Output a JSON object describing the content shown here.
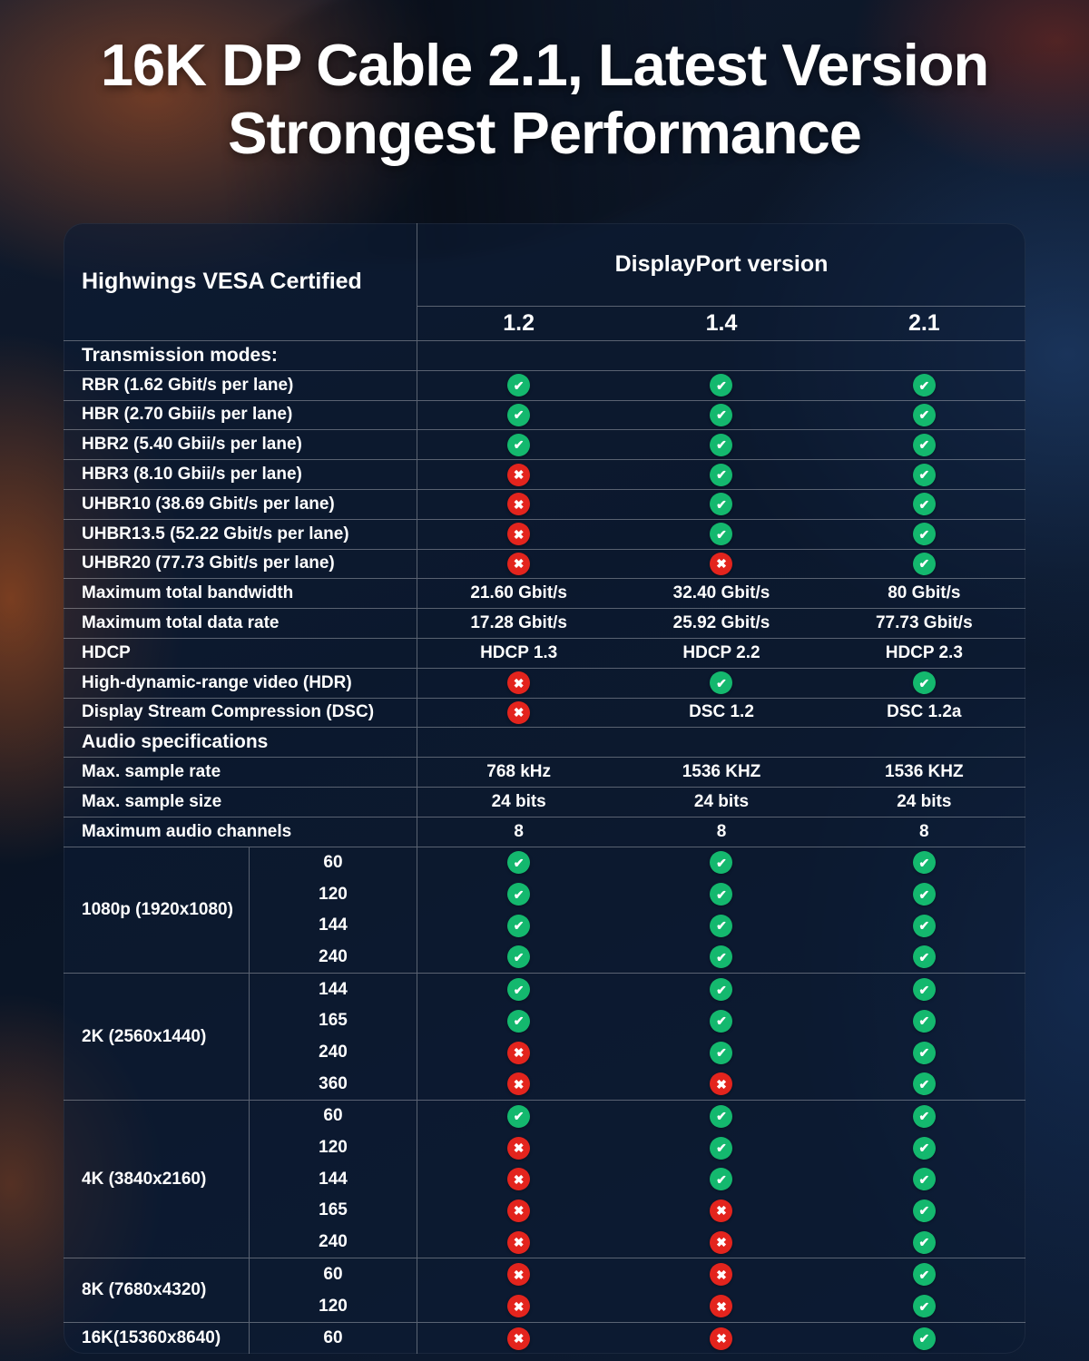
{
  "title": {
    "line1": "16K DP Cable 2.1, Latest Version",
    "line2": "Strongest Performance"
  },
  "icons": {
    "check": "✔",
    "cross": "✖"
  },
  "colors": {
    "check": "#14b86e",
    "cross": "#e3241d"
  },
  "chart_data": {
    "type": "table",
    "title": "16K DP Cable 2.1, Latest Version Strongest Performance",
    "left_header": "Highwings VESA Certified",
    "group_header": "DisplayPort version",
    "columns": [
      "1.2",
      "1.4",
      "2.1"
    ],
    "spec_rows": [
      {
        "type": "section",
        "label": "Transmission modes:"
      },
      {
        "label": "RBR (1.62 Gbit/s per lane)",
        "values": [
          "check",
          "check",
          "check"
        ]
      },
      {
        "label": "HBR (2.70 Gbii/s per lane)",
        "values": [
          "check",
          "check",
          "check"
        ]
      },
      {
        "label": "HBR2 (5.40 Gbii/s per lane)",
        "values": [
          "check",
          "check",
          "check"
        ]
      },
      {
        "label": "HBR3 (8.10 Gbii/s per lane)",
        "values": [
          "cross",
          "check",
          "check"
        ]
      },
      {
        "label": "UHBR10 (38.69 Gbit/s per lane)",
        "values": [
          "cross",
          "check",
          "check"
        ]
      },
      {
        "label": "UHBR13.5 (52.22 Gbit/s per lane)",
        "values": [
          "cross",
          "check",
          "check"
        ]
      },
      {
        "label": "UHBR20 (77.73 Gbit/s per lane)",
        "values": [
          "cross",
          "cross",
          "check"
        ]
      },
      {
        "label": "Maximum total bandwidth",
        "values": [
          "21.60 Gbit/s",
          "32.40 Gbit/s",
          "80 Gbit/s"
        ]
      },
      {
        "label": "Maximum total data rate",
        "values": [
          "17.28 Gbit/s",
          "25.92 Gbit/s",
          "77.73 Gbit/s"
        ]
      },
      {
        "label": "HDCP",
        "values": [
          "HDCP 1.3",
          "HDCP 2.2",
          "HDCP 2.3"
        ]
      },
      {
        "label": "High-dynamic-range video (HDR)",
        "values": [
          "cross",
          "check",
          "check"
        ]
      },
      {
        "label": "Display Stream Compression (DSC)",
        "values": [
          "cross",
          "DSC 1.2",
          "DSC 1.2a"
        ]
      },
      {
        "type": "section",
        "label": "Audio specifications"
      },
      {
        "label": "Max. sample rate",
        "values": [
          "768 kHz",
          "1536 KHZ",
          "1536 KHZ"
        ]
      },
      {
        "label": "Max. sample size",
        "values": [
          "24 bits",
          "24 bits",
          "24 bits"
        ]
      },
      {
        "label": "Maximum audio channels",
        "values": [
          "8",
          "8",
          "8"
        ]
      }
    ],
    "resolution_groups": [
      {
        "label": "1080p (1920x1080)",
        "rows": [
          {
            "rate": "60",
            "values": [
              "check",
              "check",
              "check"
            ]
          },
          {
            "rate": "120",
            "values": [
              "check",
              "check",
              "check"
            ]
          },
          {
            "rate": "144",
            "values": [
              "check",
              "check",
              "check"
            ]
          },
          {
            "rate": "240",
            "values": [
              "check",
              "check",
              "check"
            ]
          }
        ]
      },
      {
        "label": "2K (2560x1440)",
        "rows": [
          {
            "rate": "144",
            "values": [
              "check",
              "check",
              "check"
            ]
          },
          {
            "rate": "165",
            "values": [
              "check",
              "check",
              "check"
            ]
          },
          {
            "rate": "240",
            "values": [
              "cross",
              "check",
              "check"
            ]
          },
          {
            "rate": "360",
            "values": [
              "cross",
              "cross",
              "check"
            ]
          }
        ]
      },
      {
        "label": "4K (3840x2160)",
        "rows": [
          {
            "rate": "60",
            "values": [
              "check",
              "check",
              "check"
            ]
          },
          {
            "rate": "120",
            "values": [
              "cross",
              "check",
              "check"
            ]
          },
          {
            "rate": "144",
            "values": [
              "cross",
              "check",
              "check"
            ]
          },
          {
            "rate": "165",
            "values": [
              "cross",
              "cross",
              "check"
            ]
          },
          {
            "rate": "240",
            "values": [
              "cross",
              "cross",
              "check"
            ]
          }
        ]
      },
      {
        "label": "8K (7680x4320)",
        "rows": [
          {
            "rate": "60",
            "values": [
              "cross",
              "cross",
              "check"
            ]
          },
          {
            "rate": "120",
            "values": [
              "cross",
              "cross",
              "check"
            ]
          }
        ]
      },
      {
        "label": "16K(15360x8640)",
        "rows": [
          {
            "rate": "60",
            "values": [
              "cross",
              "cross",
              "check"
            ]
          }
        ]
      }
    ]
  }
}
